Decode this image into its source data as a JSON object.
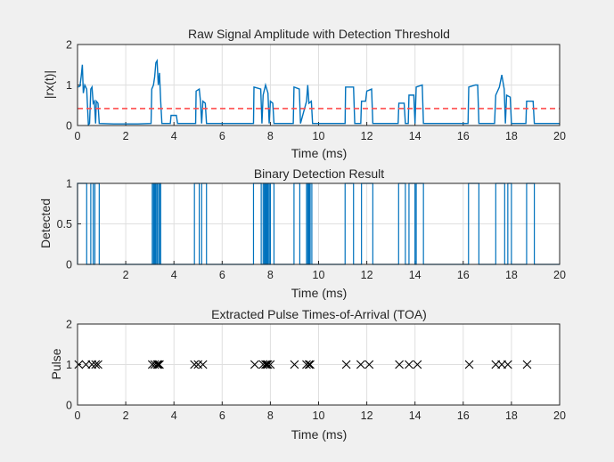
{
  "figure": {
    "background": "#f0f0f0"
  },
  "chart_data": [
    {
      "type": "line",
      "title": "Raw Signal Amplitude with Detection Threshold",
      "xlabel": "Time (ms)",
      "ylabel": "|rx(t)|",
      "xlim": [
        0,
        20
      ],
      "ylim": [
        0,
        2
      ],
      "xticks": [
        "0",
        "2",
        "4",
        "6",
        "8",
        "10",
        "12",
        "14",
        "16",
        "18",
        "20"
      ],
      "yticks": [
        "0",
        "1",
        "2"
      ],
      "grid": true,
      "series": [
        {
          "style": "line",
          "color": "#0072bd",
          "points": [
            [
              0,
              0.95
            ],
            [
              0.1,
              0.97
            ],
            [
              0.15,
              1.2
            ],
            [
              0.2,
              1.5
            ],
            [
              0.24,
              0.8
            ],
            [
              0.3,
              1.0
            ],
            [
              0.38,
              0.9
            ],
            [
              0.45,
              0.02
            ],
            [
              0.5,
              0.05
            ],
            [
              0.55,
              0.9
            ],
            [
              0.6,
              0.95
            ],
            [
              0.65,
              0.55
            ],
            [
              0.7,
              0.6
            ],
            [
              0.75,
              0.05
            ],
            [
              0.78,
              0.6
            ],
            [
              0.85,
              0.55
            ],
            [
              0.9,
              0.05
            ],
            [
              1.5,
              0.04
            ],
            [
              2.5,
              0.04
            ],
            [
              3.05,
              0.05
            ],
            [
              3.08,
              0.9
            ],
            [
              3.15,
              1.0
            ],
            [
              3.2,
              1.2
            ],
            [
              3.25,
              1.55
            ],
            [
              3.3,
              1.6
            ],
            [
              3.35,
              1.0
            ],
            [
              3.4,
              1.3
            ],
            [
              3.45,
              0.6
            ],
            [
              3.5,
              0.05
            ],
            [
              3.85,
              0.05
            ],
            [
              3.88,
              0.25
            ],
            [
              4.1,
              0.25
            ],
            [
              4.15,
              0.05
            ],
            [
              4.9,
              0.05
            ],
            [
              4.92,
              0.85
            ],
            [
              5.05,
              0.9
            ],
            [
              5.1,
              0.6
            ],
            [
              5.15,
              0.05
            ],
            [
              5.2,
              0.6
            ],
            [
              5.3,
              0.55
            ],
            [
              5.35,
              0.05
            ],
            [
              7.3,
              0.05
            ],
            [
              7.32,
              0.95
            ],
            [
              7.6,
              0.9
            ],
            [
              7.65,
              0.05
            ],
            [
              7.7,
              0.75
            ],
            [
              7.8,
              1.0
            ],
            [
              7.9,
              0.8
            ],
            [
              7.95,
              0.05
            ],
            [
              8.0,
              0.6
            ],
            [
              8.1,
              0.55
            ],
            [
              8.15,
              0.05
            ],
            [
              8.95,
              0.05
            ],
            [
              8.98,
              0.95
            ],
            [
              9.2,
              0.9
            ],
            [
              9.25,
              0.05
            ],
            [
              9.5,
              0.6
            ],
            [
              9.55,
              1.0
            ],
            [
              9.6,
              0.55
            ],
            [
              9.7,
              0.6
            ],
            [
              9.75,
              0.05
            ],
            [
              10.3,
              0.05
            ],
            [
              11.1,
              0.05
            ],
            [
              11.12,
              0.95
            ],
            [
              11.45,
              0.95
            ],
            [
              11.5,
              0.05
            ],
            [
              11.75,
              0.05
            ],
            [
              11.78,
              0.6
            ],
            [
              11.95,
              0.6
            ],
            [
              12.0,
              0.85
            ],
            [
              12.2,
              0.9
            ],
            [
              12.25,
              0.05
            ],
            [
              13.3,
              0.05
            ],
            [
              13.33,
              0.55
            ],
            [
              13.55,
              0.55
            ],
            [
              13.6,
              0.05
            ],
            [
              13.72,
              0.05
            ],
            [
              13.75,
              0.75
            ],
            [
              13.95,
              0.75
            ],
            [
              14.0,
              0.05
            ],
            [
              14.05,
              0.95
            ],
            [
              14.3,
              1.0
            ],
            [
              14.35,
              0.05
            ],
            [
              16.2,
              0.05
            ],
            [
              16.23,
              0.95
            ],
            [
              16.5,
              1.0
            ],
            [
              16.6,
              1.0
            ],
            [
              16.65,
              0.05
            ],
            [
              17.3,
              0.05
            ],
            [
              17.35,
              0.75
            ],
            [
              17.5,
              0.95
            ],
            [
              17.6,
              1.25
            ],
            [
              17.7,
              0.9
            ],
            [
              17.75,
              0.05
            ],
            [
              17.8,
              0.75
            ],
            [
              17.95,
              0.7
            ],
            [
              18.0,
              0.05
            ],
            [
              18.6,
              0.05
            ],
            [
              18.63,
              0.6
            ],
            [
              18.9,
              0.6
            ],
            [
              18.95,
              0.05
            ],
            [
              20,
              0.05
            ]
          ]
        },
        {
          "style": "dashed",
          "color": "#ff4d4d",
          "points": [
            [
              0,
              0.42
            ],
            [
              20,
              0.42
            ]
          ]
        }
      ]
    },
    {
      "type": "line",
      "title": "Binary Detection Result",
      "xlabel": "Time (ms)",
      "ylabel": "Detected",
      "xlim": [
        0,
        20
      ],
      "ylim": [
        0,
        1
      ],
      "xticks": [
        "2",
        "4",
        "6",
        "8",
        "10",
        "12",
        "14",
        "16",
        "18",
        "20"
      ],
      "yticks": [
        "0",
        "0.5",
        "1"
      ],
      "grid": true,
      "series": [
        {
          "style": "step",
          "color": "#0072bd",
          "intervals": [
            [
              0,
              0.38
            ],
            [
              0.55,
              0.65
            ],
            [
              0.72,
              0.9
            ],
            [
              3.1,
              3.15
            ],
            [
              3.18,
              3.22
            ],
            [
              3.25,
              3.3
            ],
            [
              3.32,
              3.38
            ],
            [
              3.4,
              3.45
            ],
            [
              4.85,
              5.05
            ],
            [
              5.15,
              5.35
            ],
            [
              7.3,
              7.62
            ],
            [
              7.7,
              7.75
            ],
            [
              7.78,
              7.82
            ],
            [
              7.84,
              7.88
            ],
            [
              7.9,
              7.95
            ],
            [
              8.0,
              8.15
            ],
            [
              8.98,
              9.22
            ],
            [
              9.5,
              9.55
            ],
            [
              9.58,
              9.62
            ],
            [
              9.65,
              9.72
            ],
            [
              11.1,
              11.45
            ],
            [
              11.78,
              12.25
            ],
            [
              13.32,
              13.6
            ],
            [
              13.75,
              14.0
            ],
            [
              14.05,
              14.35
            ],
            [
              16.22,
              16.65
            ],
            [
              17.35,
              17.72
            ],
            [
              17.85,
              18.0
            ],
            [
              18.63,
              18.95
            ]
          ]
        }
      ]
    },
    {
      "type": "scatter",
      "title": "Extracted Pulse Times-of-Arrival (TOA)",
      "xlabel": "Time (ms)",
      "ylabel": "Pulse",
      "xlim": [
        0,
        20
      ],
      "ylim": [
        0,
        2
      ],
      "xticks": [
        "0",
        "2",
        "4",
        "6",
        "8",
        "10",
        "12",
        "14",
        "16",
        "18",
        "20"
      ],
      "yticks": [
        "0",
        "1",
        "2"
      ],
      "grid": true,
      "marker": "x",
      "color": "#000000",
      "x": [
        0.05,
        0.35,
        0.6,
        0.75,
        0.85,
        3.1,
        3.2,
        3.3,
        3.35,
        3.4,
        4.85,
        5.0,
        5.2,
        7.35,
        7.7,
        7.8,
        7.85,
        7.9,
        8.0,
        9.0,
        9.5,
        9.6,
        9.65,
        11.15,
        11.75,
        12.1,
        13.35,
        13.75,
        14.1,
        16.25,
        17.35,
        17.6,
        17.85,
        18.65
      ],
      "y": [
        1,
        1,
        1,
        1,
        1,
        1,
        1,
        1,
        1,
        1,
        1,
        1,
        1,
        1,
        1,
        1,
        1,
        1,
        1,
        1,
        1,
        1,
        1,
        1,
        1,
        1,
        1,
        1,
        1,
        1,
        1,
        1,
        1,
        1
      ]
    }
  ]
}
